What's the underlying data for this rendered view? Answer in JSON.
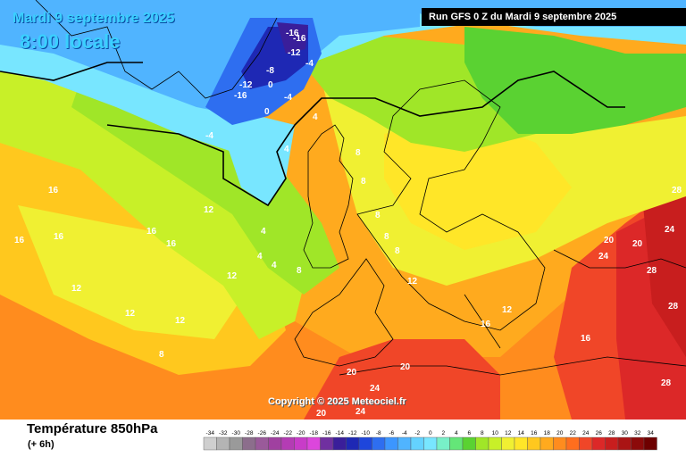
{
  "header": {
    "date": "Mardi 9 septembre 2025",
    "time": "8:00 locale",
    "run": "Run GFS 0 Z du Mardi 9 septembre 2025"
  },
  "footer": {
    "parameter": "Température 850hPa",
    "step": "(+ 6h)",
    "copyright": "Copyright © 2025 Meteociel.fr"
  },
  "legend": {
    "values": [
      "-34",
      "-32",
      "-30",
      "-28",
      "-26",
      "-24",
      "-22",
      "-20",
      "-18",
      "-16",
      "-14",
      "-12",
      "-10",
      "-8",
      "-6",
      "-4",
      "-2",
      "0",
      "2",
      "4",
      "6",
      "8",
      "10",
      "12",
      "14",
      "16",
      "18",
      "20",
      "22",
      "24",
      "26",
      "28",
      "30",
      "32",
      "34"
    ],
    "colors": [
      "#cfcfcf",
      "#b4b4b4",
      "#9a9a9a",
      "#8c6e8c",
      "#9a5a9a",
      "#a040a0",
      "#b43cb4",
      "#c83cc8",
      "#dc46dc",
      "#7030a0",
      "#3a1e9a",
      "#1e28b4",
      "#1e46dc",
      "#2e6ef0",
      "#3c96ff",
      "#50b4ff",
      "#64d2ff",
      "#78e6ff",
      "#78f0c8",
      "#64e678",
      "#5ad232",
      "#a0e628",
      "#c8f028",
      "#f0f032",
      "#ffe628",
      "#ffc81e",
      "#ffaa1e",
      "#ff8c1e",
      "#ff6e1e",
      "#f04628",
      "#dc2828",
      "#c81e1e",
      "#aa1414",
      "#8c0a0a",
      "#6e0000"
    ]
  },
  "map_labels": [
    "-16",
    "-16",
    "-12",
    "-12",
    "-16",
    "-8",
    "-4",
    "0",
    "-4",
    "-4",
    "0",
    "4",
    "4",
    "4",
    "4",
    "4",
    "8",
    "8",
    "8",
    "8",
    "8",
    "8",
    "8",
    "12",
    "12",
    "12",
    "12",
    "12",
    "12",
    "12",
    "16",
    "16",
    "16",
    "16",
    "16",
    "16",
    "16",
    "20",
    "20",
    "20",
    "20",
    "20",
    "24",
    "24",
    "24",
    "24",
    "28",
    "28",
    "28",
    "28",
    "28"
  ]
}
